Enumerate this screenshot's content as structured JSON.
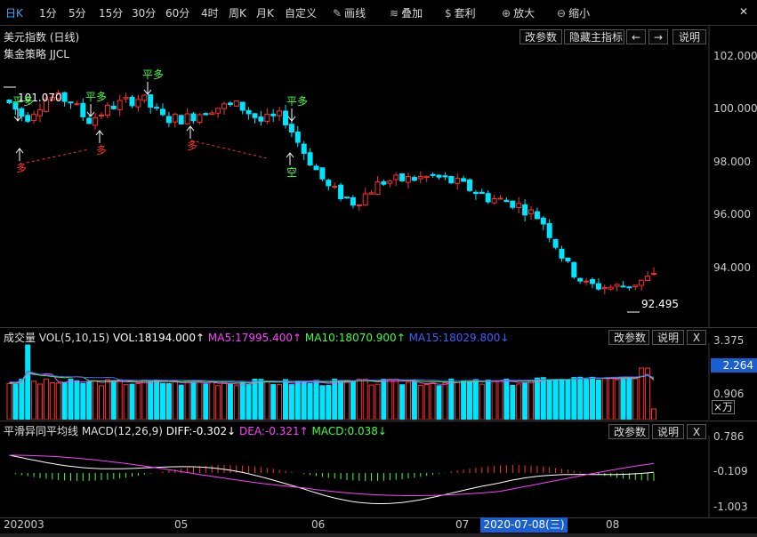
{
  "toolbar": {
    "periods": [
      "日K",
      "1分",
      "5分",
      "15分",
      "30分",
      "60分",
      "4时",
      "周K",
      "月K",
      "自定义"
    ],
    "tools": [
      {
        "label": "画线",
        "icon": "pencil-icon"
      },
      {
        "label": "叠加",
        "icon": "stack-icon"
      },
      {
        "label": "套利",
        "icon": "money-bag-icon"
      },
      {
        "label": "放大",
        "icon": "zoom-in-icon"
      },
      {
        "label": "缩小",
        "icon": "zoom-out-icon"
      }
    ],
    "close_glyph": "✕"
  },
  "main": {
    "title": "美元指数 (日线)",
    "strategy": "集金策略 JJCL",
    "buttons": {
      "params": "改参数",
      "hide": "隐藏主指标",
      "prev": "←",
      "next": "→",
      "help": "说明"
    },
    "price_axis": [
      "102.000",
      "100.000",
      "98.000",
      "96.000",
      "94.000"
    ],
    "high_label": "101.070",
    "low_label": "92.495",
    "signals": {
      "flat_long": "平多",
      "long": "多",
      "short": "空"
    }
  },
  "volume": {
    "label_prefix": "成交量 VOL(5,10,15)",
    "vol": "VOL:18194.000↑",
    "ma5": "MA5:17995.400↑",
    "ma10": "MA10:18070.900↑",
    "ma15": "MA15:18029.800↓",
    "buttons": {
      "params": "改参数",
      "help": "说明",
      "close": "X"
    },
    "axis": [
      "3.375",
      "0.906"
    ],
    "current": "2.264",
    "unit": "×万",
    "colors": {
      "ma5": "#ff40ff",
      "ma10": "#40ff40",
      "ma15": "#4060ff",
      "vol": "#ffffff"
    }
  },
  "macd": {
    "label_prefix": "平滑异同平均线 MACD(12,26,9)",
    "diff": "DIFF:-0.302↓",
    "dea": "DEA:-0.321↑",
    "macd": "MACD:0.038↓",
    "buttons": {
      "params": "改参数",
      "help": "说明",
      "close": "X"
    },
    "axis": [
      "0.786",
      "-0.109",
      "-1.003"
    ],
    "colors": {
      "diff": "#ffffff",
      "dea": "#ff40ff",
      "macd": "#40ff40"
    }
  },
  "time_axis": {
    "labels": [
      "202003",
      "05",
      "06",
      "07",
      "08"
    ],
    "cursor": "2020-07-08(三)"
  },
  "colors": {
    "up": "#ff3030",
    "down": "#00e5ff",
    "accent": "#3aa7ff",
    "cursor_bg": "#1a5fd0"
  }
}
